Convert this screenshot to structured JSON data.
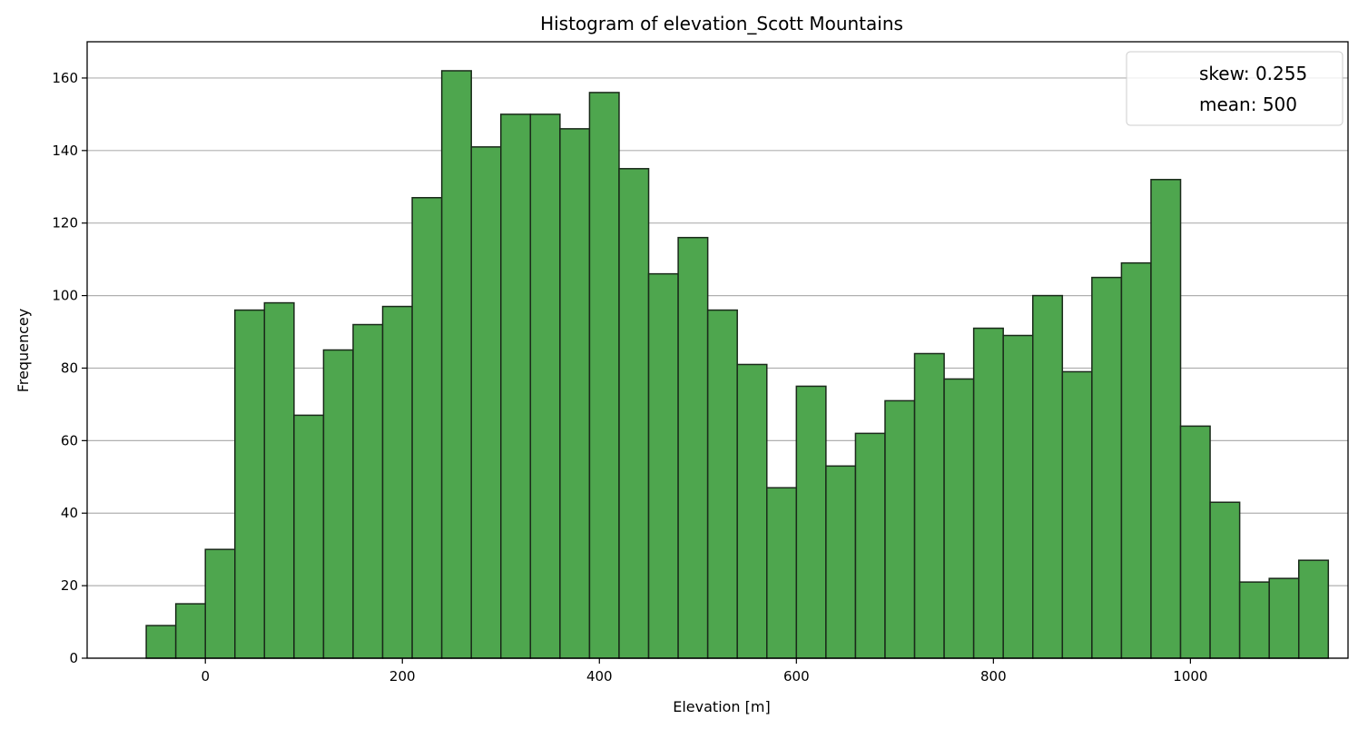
{
  "chart_data": {
    "type": "bar",
    "title": "Histogram of elevation_Scott Mountains",
    "xlabel": "Elevation [m]",
    "ylabel": "Frequencey",
    "xlim": [
      -120,
      1160
    ],
    "ylim": [
      0,
      170
    ],
    "grid": "y",
    "bar_color": "#4ea64e",
    "bar_edge_color": "#1a2a1a",
    "bin_start": -60,
    "bin_width": 30,
    "values": [
      9,
      15,
      30,
      96,
      98,
      67,
      85,
      92,
      97,
      127,
      162,
      141,
      150,
      150,
      146,
      156,
      135,
      106,
      116,
      96,
      81,
      47,
      75,
      53,
      62,
      71,
      84,
      77,
      91,
      89,
      100,
      79,
      105,
      109,
      132,
      64,
      43,
      21,
      22,
      27
    ],
    "x_ticks": [
      0,
      200,
      400,
      600,
      800,
      1000
    ],
    "y_ticks": [
      0,
      20,
      40,
      60,
      80,
      100,
      120,
      140,
      160
    ],
    "legend": {
      "position": "top-right",
      "entries": [
        "skew: 0.255",
        "mean: 500"
      ]
    }
  }
}
